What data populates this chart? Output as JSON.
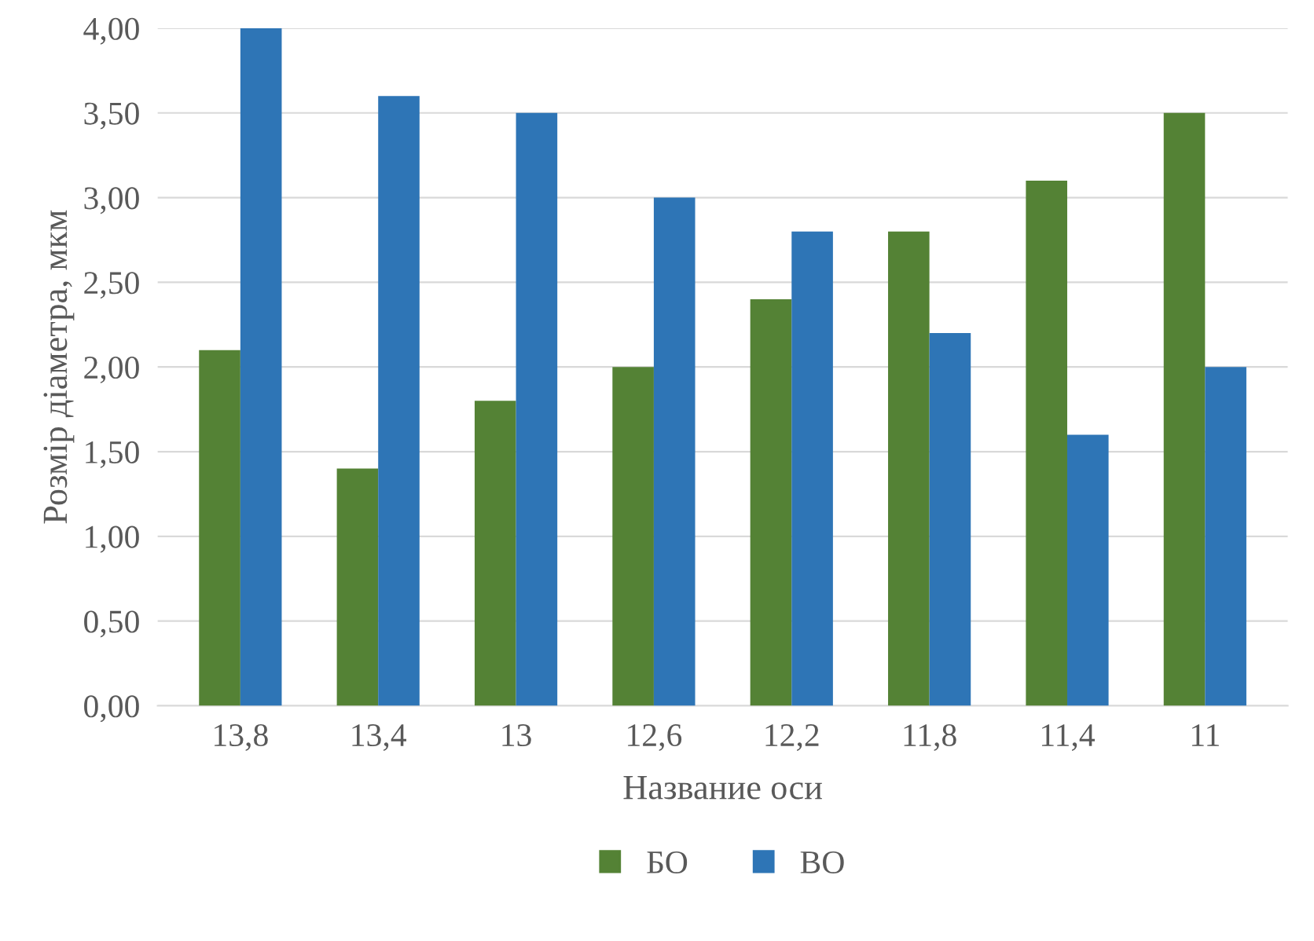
{
  "chart_data": {
    "type": "bar",
    "xlabel": "Название оси",
    "ylabel": "Розмір діаметра, мкм",
    "categories": [
      "13,8",
      "13,4",
      "13",
      "12,6",
      "12,2",
      "11,8",
      "11,4",
      "11"
    ],
    "series": [
      {
        "name": "БО",
        "color": "#548235",
        "values": [
          2.1,
          1.4,
          1.8,
          2.0,
          2.4,
          2.8,
          3.1,
          3.5
        ]
      },
      {
        "name": "ВО",
        "color": "#2e75b6",
        "values": [
          4.0,
          3.6,
          3.5,
          3.0,
          2.8,
          2.2,
          1.6,
          2.0
        ]
      }
    ],
    "ylim": [
      0,
      4
    ],
    "yticks": [
      {
        "value": 0,
        "label": "0,00"
      },
      {
        "value": 0.5,
        "label": "0,50"
      },
      {
        "value": 1,
        "label": "1,00"
      },
      {
        "value": 1.5,
        "label": "1,50"
      },
      {
        "value": 2,
        "label": "2,00"
      },
      {
        "value": 2.5,
        "label": "2,50"
      },
      {
        "value": 3,
        "label": "3,00"
      },
      {
        "value": 3.5,
        "label": "3,50"
      },
      {
        "value": 4,
        "label": "4,00"
      }
    ],
    "grid": "y",
    "legend": "bottom"
  }
}
